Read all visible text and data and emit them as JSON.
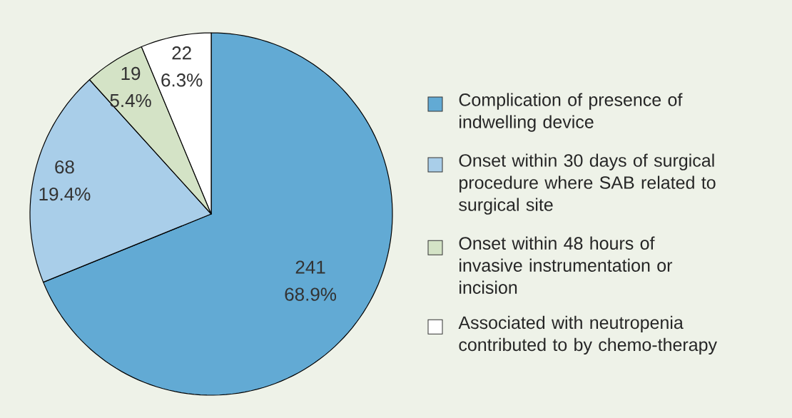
{
  "chart_data": {
    "type": "pie",
    "categories": [
      "Complication of presence of indwelling device",
      "Onset within 30 days of surgical procedure where SAB related to surgical site",
      "Onset within 48 hours of invasive instrumentation or incision",
      "Associated with neutropenia contributed to by chemo-therapy"
    ],
    "values": [
      241,
      68,
      19,
      22
    ],
    "value_labels": [
      "241 68.9%",
      "68 19.4%",
      "19 5.4%",
      "22 6.3%"
    ],
    "colors": [
      "#62aad4",
      "#a9cee9",
      "#d4e3c6",
      "#ffffff"
    ],
    "legend": "right"
  }
}
